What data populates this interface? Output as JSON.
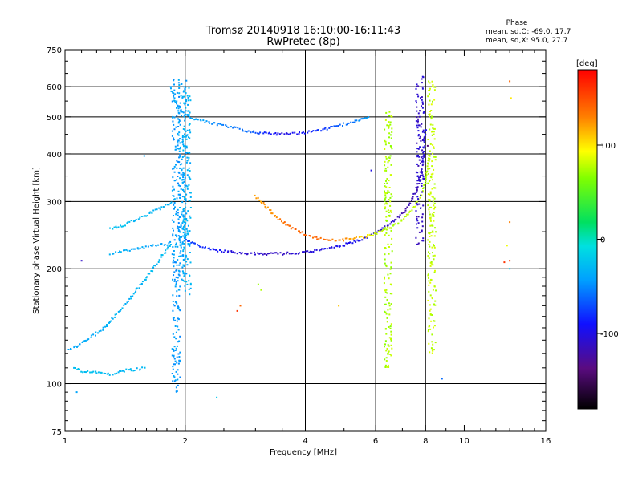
{
  "chart_data": {
    "type": "scatter",
    "title": "Tromsø 20140918 16:10:00-16:11:43",
    "subtitle": "RwPretec (8p)",
    "xlabel": "Frequency [MHz]",
    "ylabel": "Stationary phase Virtual Height [km]",
    "x_scale": "log",
    "y_scale": "log",
    "xlim": [
      1,
      16
    ],
    "ylim": [
      75,
      750
    ],
    "x_ticks": [
      "1",
      "2",
      "4",
      "6",
      "8",
      "10",
      "16"
    ],
    "y_ticks": [
      "75",
      "100",
      "200",
      "300",
      "400",
      "500",
      "600",
      "750"
    ],
    "x_gridlines": [
      2,
      4,
      6,
      8
    ],
    "y_gridlines": [
      100,
      200,
      300,
      400,
      500,
      600
    ],
    "phase_stats": {
      "header": "Phase",
      "line1": "mean, sd,O: -69.0, 17.7",
      "line2": "mean, sd,X:  95.0, 27.7"
    },
    "colorbar": {
      "label": "[deg]",
      "range": [
        -180,
        180
      ],
      "ticks": [
        "100",
        "0",
        "-100"
      ]
    },
    "traces": [
      {
        "x": [
          1.84,
          1.86,
          1.88,
          1.9,
          1.92,
          1.95,
          2.0,
          2.05,
          2.1,
          2.2,
          2.4,
          2.6,
          2.8,
          3.0,
          3.5,
          4.0,
          4.5,
          5.0,
          5.5,
          5.8
        ],
        "y": [
          600,
          580,
          560,
          540,
          525,
          515,
          508,
          500,
          495,
          488,
          478,
          470,
          462,
          455,
          450,
          455,
          465,
          478,
          490,
          500
        ],
        "phase": [
          -40,
          -40,
          -40,
          -40,
          -40,
          -40,
          -40,
          -40,
          -40,
          -45,
          -50,
          -55,
          -60,
          -70,
          -100,
          -90,
          -75,
          -60,
          -50,
          -45
        ]
      },
      {
        "x": [
          2.0,
          2.1,
          2.3,
          2.5,
          2.7,
          3.0,
          3.5,
          4.0,
          4.5,
          5.0,
          5.5,
          6.0,
          6.3,
          6.6,
          7.0,
          7.3,
          7.6,
          7.8,
          7.9,
          8.0
        ],
        "y": [
          240,
          232,
          226,
          222,
          220,
          219,
          219,
          221,
          225,
          231,
          238,
          248,
          256,
          265,
          278,
          296,
          322,
          352,
          395,
          470
        ],
        "phase": [
          -70,
          -75,
          -85,
          -95,
          -105,
          -110,
          -110,
          -105,
          -100,
          -95,
          -100,
          -105,
          -108,
          -112,
          -120,
          -120,
          -115,
          -110,
          -105,
          -100
        ]
      },
      {
        "x": [
          3.0,
          3.2,
          3.4,
          3.7,
          4.0,
          4.3,
          4.6,
          5.0,
          5.5,
          6.0,
          6.5,
          7.0,
          7.4,
          7.8,
          8.0,
          8.2
        ],
        "y": [
          310,
          290,
          272,
          256,
          246,
          240,
          238,
          238,
          241,
          247,
          256,
          268,
          285,
          310,
          340,
          400
        ],
        "phase": [
          120,
          125,
          130,
          140,
          140,
          140,
          135,
          130,
          110,
          85,
          75,
          75,
          80,
          80,
          75,
          80
        ]
      },
      {
        "x": [
          1.02,
          1.08,
          1.15,
          1.25,
          1.35,
          1.45,
          1.55,
          1.65,
          1.75,
          1.85
        ],
        "y": [
          122,
          126,
          131,
          140,
          152,
          166,
          182,
          198,
          216,
          232
        ],
        "phase": [
          -40,
          -38,
          -36,
          -35,
          -33,
          -32,
          -32,
          -30,
          -30,
          -30
        ]
      },
      {
        "x": [
          1.3,
          1.4,
          1.5,
          1.6,
          1.7,
          1.8,
          1.9
        ],
        "y": [
          254,
          260,
          268,
          276,
          285,
          294,
          305
        ],
        "phase": [
          -25,
          -28,
          -30,
          -30,
          -32,
          -35,
          -40
        ]
      },
      {
        "x": [
          1.3,
          1.4,
          1.5,
          1.6,
          1.7,
          1.8,
          1.85
        ],
        "y": [
          218,
          222,
          226,
          228,
          230,
          232,
          234
        ],
        "phase": [
          -35,
          -35,
          -38,
          -40,
          -40,
          -40,
          -40
        ]
      },
      {
        "x": [
          1.05,
          1.1,
          1.2,
          1.3,
          1.4,
          1.5,
          1.6
        ],
        "y": [
          110,
          108,
          107,
          106,
          108,
          109,
          110
        ],
        "phase": [
          -25,
          -25,
          -28,
          -28,
          -30,
          -30,
          -30
        ]
      }
    ],
    "columns": [
      {
        "x": 1.9,
        "y": [
          95,
          630
        ],
        "phase": -45
      },
      {
        "x": 1.97,
        "y": [
          180,
          630
        ],
        "phase": -40
      },
      {
        "x": 2.02,
        "y": [
          170,
          600
        ],
        "phase": -35
      },
      {
        "x": 7.75,
        "y": [
          230,
          640
        ],
        "phase": -110
      },
      {
        "x": 8.3,
        "y": [
          120,
          630
        ],
        "phase": 80
      },
      {
        "x": 6.45,
        "y": [
          110,
          520
        ],
        "phase": 75
      }
    ],
    "isolated_points": [
      {
        "x": 13.0,
        "y": 620,
        "phase": 140
      },
      {
        "x": 13.1,
        "y": 560,
        "phase": 100
      },
      {
        "x": 13.0,
        "y": 265,
        "phase": 130
      },
      {
        "x": 13.0,
        "y": 210,
        "phase": 160
      },
      {
        "x": 12.6,
        "y": 208,
        "phase": 160
      },
      {
        "x": 13.0,
        "y": 200,
        "phase": -20
      },
      {
        "x": 12.8,
        "y": 230,
        "phase": 90
      },
      {
        "x": 3.05,
        "y": 182,
        "phase": 70
      },
      {
        "x": 3.1,
        "y": 176,
        "phase": 75
      },
      {
        "x": 2.75,
        "y": 160,
        "phase": 140
      },
      {
        "x": 2.7,
        "y": 155,
        "phase": 160
      },
      {
        "x": 4.85,
        "y": 160,
        "phase": 110
      },
      {
        "x": 8.8,
        "y": 103,
        "phase": -60
      },
      {
        "x": 1.07,
        "y": 95,
        "phase": -40
      },
      {
        "x": 2.4,
        "y": 92,
        "phase": -20
      },
      {
        "x": 1.1,
        "y": 210,
        "phase": -110
      },
      {
        "x": 1.58,
        "y": 395,
        "phase": -40
      },
      {
        "x": 5.85,
        "y": 362,
        "phase": -100
      },
      {
        "x": 8.1,
        "y": 420,
        "phase": -140
      }
    ]
  }
}
